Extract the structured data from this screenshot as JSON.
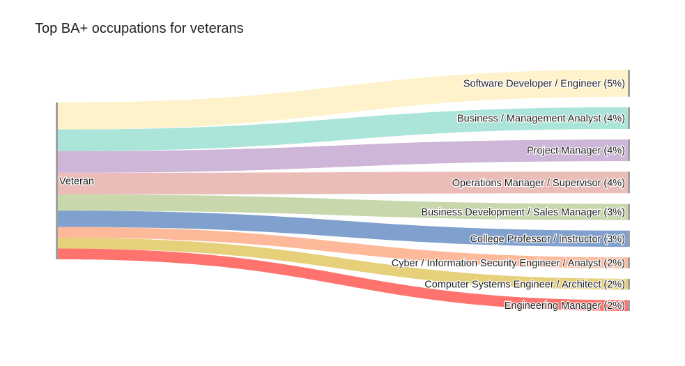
{
  "chart_data": {
    "type": "sankey",
    "title": "Top BA+ occupations for veterans",
    "source": {
      "label": "Veteran"
    },
    "targets": [
      {
        "label": "Software Developer / Engineer (5%)",
        "name": "Software Developer / Engineer",
        "value": 5,
        "color": "#fdf1c7"
      },
      {
        "label": "Business / Management Analyst (4%)",
        "name": "Business / Management Analyst",
        "value": 4,
        "color": "#a6e3d7"
      },
      {
        "label": "Project Manager (4%)",
        "name": "Project Manager",
        "value": 4,
        "color": "#cab2d6"
      },
      {
        "label": "Operations Manager / Supervisor (4%)",
        "name": "Operations Manager / Supervisor",
        "value": 4,
        "color": "#e9b9b4"
      },
      {
        "label": "Business Development / Sales Manager (3%)",
        "name": "Business Development / Sales Manager",
        "value": 3,
        "color": "#c5d6a8"
      },
      {
        "label": "College Professor / Instructor (3%)",
        "name": "College Professor / Instructor",
        "value": 3,
        "color": "#799ccb"
      },
      {
        "label": "Cyber / Information Security Engineer / Analyst (2%)",
        "name": "Cyber / Information Security Engineer / Analyst",
        "value": 2,
        "color": "#fdb595"
      },
      {
        "label": "Computer Systems Engineer / Architect (2%)",
        "name": "Computer Systems Engineer / Architect",
        "value": 2,
        "color": "#e6cd73"
      },
      {
        "label": "Engineering Manager (2%)",
        "name": "Engineering Manager",
        "value": 2,
        "color": "#ff6b66"
      }
    ],
    "node_color": "#a0a0a0"
  }
}
